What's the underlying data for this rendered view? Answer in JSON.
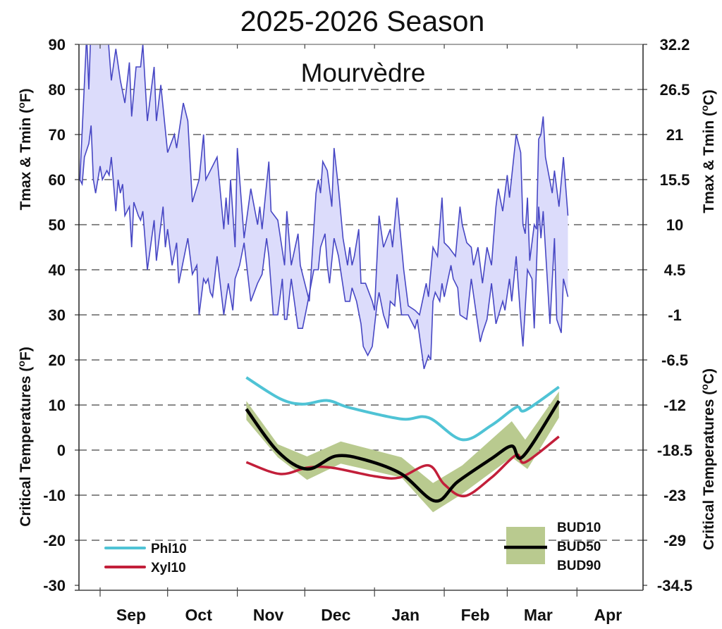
{
  "chart_data": {
    "type": "line",
    "title": "2025-2026 Season",
    "subtitle": "Mourvèdre",
    "ylabel_left_top": "Tmax & Tmin (",
    "ylabel_left_bottom": "Critical Temperatures (",
    "ylabel_right_top": "Tmax & Tmin (",
    "ylabel_right_bottom": "Critical Temperatures (",
    "unit_left": "F",
    "unit_right": "C",
    "degree_sup": "o",
    "close_paren": ")",
    "ylim_f": [
      -30,
      90
    ],
    "yticks_f": [
      "90",
      "80",
      "70",
      "60",
      "50",
      "40",
      "30",
      "20",
      "10",
      "0",
      "-10",
      "-20",
      "-30"
    ],
    "yticks_c": [
      "32.2",
      "26.5",
      "21",
      "15.5",
      "10",
      "4.5",
      "-1",
      "-6.5",
      "-12",
      "-18.5",
      "-23",
      "-29",
      "-34.5"
    ],
    "xlim": [
      "2025-08-22",
      "2026-05-01"
    ],
    "month_ticks": [
      "2025-09-01",
      "2025-10-01",
      "2025-11-01",
      "2025-12-01",
      "2026-01-01",
      "2026-02-01",
      "2026-03-01",
      "2026-04-01"
    ],
    "month_labels": [
      "Sep",
      "Oct",
      "Nov",
      "Dec",
      "Jan",
      "Feb",
      "Mar",
      "Apr"
    ],
    "grid": "horizontal dashed",
    "colors": {
      "temp_line": "#4747c4",
      "temp_fill": "#dcdcfb",
      "phl10": "#4fc3d5",
      "xyl10": "#c21f3a",
      "bud_band": "#b9ca8f",
      "bud50": "#000000"
    },
    "legend": {
      "left": [
        {
          "name": "Phl10",
          "key": "phl10"
        },
        {
          "name": "Xyl10",
          "key": "xyl10"
        }
      ],
      "right": [
        "BUD10",
        "BUD50",
        "BUD90"
      ],
      "placement": "bottom-left and bottom-right"
    },
    "series": {
      "tmax": [
        [
          "2025-08-23",
          60
        ],
        [
          "2025-08-26",
          92
        ],
        [
          "2025-08-27",
          80
        ],
        [
          "2025-08-28",
          95
        ],
        [
          "2025-09-04",
          95
        ],
        [
          "2025-09-06",
          82
        ],
        [
          "2025-09-08",
          89
        ],
        [
          "2025-09-10",
          82
        ],
        [
          "2025-09-12",
          77
        ],
        [
          "2025-09-14",
          86
        ],
        [
          "2025-09-15",
          74
        ],
        [
          "2025-09-17",
          85
        ],
        [
          "2025-09-19",
          85
        ],
        [
          "2025-09-20",
          90
        ],
        [
          "2025-09-22",
          73
        ],
        [
          "2025-09-25",
          85
        ],
        [
          "2025-09-26",
          73
        ],
        [
          "2025-09-28",
          81
        ],
        [
          "2025-10-01",
          66
        ],
        [
          "2025-10-04",
          70
        ],
        [
          "2025-10-05",
          67
        ],
        [
          "2025-10-08",
          77
        ],
        [
          "2025-10-10",
          73
        ],
        [
          "2025-10-12",
          55
        ],
        [
          "2025-10-15",
          60
        ],
        [
          "2025-10-17",
          70
        ],
        [
          "2025-10-18",
          60
        ],
        [
          "2025-10-20",
          62
        ],
        [
          "2025-10-23",
          65
        ],
        [
          "2025-10-26",
          49
        ],
        [
          "2025-10-27",
          56
        ],
        [
          "2025-10-28",
          50
        ],
        [
          "2025-10-29",
          60
        ],
        [
          "2025-10-31",
          45
        ],
        [
          "2025-11-01",
          67
        ],
        [
          "2025-11-04",
          47
        ],
        [
          "2025-11-07",
          58
        ],
        [
          "2025-11-10",
          50
        ],
        [
          "2025-11-11",
          54
        ],
        [
          "2025-11-12",
          49
        ],
        [
          "2025-11-15",
          64
        ],
        [
          "2025-11-16",
          53
        ],
        [
          "2025-11-19",
          51
        ],
        [
          "2025-11-22",
          41
        ],
        [
          "2025-11-23",
          53
        ],
        [
          "2025-11-25",
          41
        ],
        [
          "2025-11-28",
          48
        ],
        [
          "2025-11-29",
          41
        ],
        [
          "2025-12-01",
          37
        ],
        [
          "2025-12-03",
          33
        ],
        [
          "2025-12-06",
          57
        ],
        [
          "2025-12-07",
          60
        ],
        [
          "2025-12-08",
          57
        ],
        [
          "2025-12-09",
          64
        ],
        [
          "2025-12-11",
          62
        ],
        [
          "2025-12-13",
          54
        ],
        [
          "2025-12-14",
          67
        ],
        [
          "2025-12-16",
          58
        ],
        [
          "2025-12-18",
          47
        ],
        [
          "2025-12-20",
          41
        ],
        [
          "2025-12-21",
          45
        ],
        [
          "2025-12-22",
          41
        ],
        [
          "2025-12-23",
          43
        ],
        [
          "2025-12-25",
          49
        ],
        [
          "2025-12-26",
          37
        ],
        [
          "2025-12-28",
          37
        ],
        [
          "2025-12-31",
          33
        ],
        [
          "2026-01-01",
          31
        ],
        [
          "2026-01-03",
          52
        ],
        [
          "2026-01-05",
          45
        ],
        [
          "2026-01-08",
          49
        ],
        [
          "2026-01-09",
          45
        ],
        [
          "2026-01-11",
          56
        ],
        [
          "2026-01-14",
          40
        ],
        [
          "2026-01-16",
          32
        ],
        [
          "2026-01-19",
          31
        ],
        [
          "2026-01-21",
          30
        ],
        [
          "2026-01-24",
          37
        ],
        [
          "2026-01-25",
          34
        ],
        [
          "2026-01-27",
          45
        ],
        [
          "2026-01-29",
          43
        ],
        [
          "2026-01-31",
          56
        ],
        [
          "2026-02-01",
          46
        ],
        [
          "2026-02-03",
          45
        ],
        [
          "2026-02-06",
          43
        ],
        [
          "2026-02-08",
          54
        ],
        [
          "2026-02-09",
          50
        ],
        [
          "2026-02-11",
          46
        ],
        [
          "2026-02-13",
          45
        ],
        [
          "2026-02-14",
          41
        ],
        [
          "2026-02-16",
          45
        ],
        [
          "2026-02-18",
          37
        ],
        [
          "2026-02-20",
          45
        ],
        [
          "2026-02-22",
          41
        ],
        [
          "2026-02-24",
          54
        ],
        [
          "2026-02-25",
          58
        ],
        [
          "2026-02-27",
          53
        ],
        [
          "2026-03-01",
          61
        ],
        [
          "2026-03-02",
          56
        ],
        [
          "2026-03-05",
          70
        ],
        [
          "2026-03-07",
          66
        ],
        [
          "2026-03-08",
          50
        ],
        [
          "2026-03-09",
          48
        ],
        [
          "2026-03-10",
          56
        ],
        [
          "2026-03-11",
          42
        ],
        [
          "2026-03-13",
          50
        ],
        [
          "2026-03-14",
          49
        ],
        [
          "2026-03-15",
          69
        ],
        [
          "2026-03-16",
          70
        ],
        [
          "2026-03-17",
          74
        ],
        [
          "2026-03-18",
          65
        ],
        [
          "2026-03-21",
          57
        ],
        [
          "2026-03-22",
          62
        ],
        [
          "2026-03-24",
          54
        ],
        [
          "2026-03-26",
          65
        ],
        [
          "2026-03-28",
          52
        ]
      ],
      "tmin": [
        [
          "2025-08-23",
          60
        ],
        [
          "2025-08-24",
          59
        ],
        [
          "2025-08-25",
          65
        ],
        [
          "2025-08-27",
          68
        ],
        [
          "2025-08-28",
          72
        ],
        [
          "2025-08-29",
          60
        ],
        [
          "2025-08-30",
          57
        ],
        [
          "2025-09-01",
          63
        ],
        [
          "2025-09-02",
          60
        ],
        [
          "2025-09-04",
          62
        ],
        [
          "2025-09-05",
          61
        ],
        [
          "2025-09-06",
          65
        ],
        [
          "2025-09-08",
          53
        ],
        [
          "2025-09-09",
          60
        ],
        [
          "2025-09-10",
          57
        ],
        [
          "2025-09-11",
          59
        ],
        [
          "2025-09-12",
          52
        ],
        [
          "2025-09-14",
          54
        ],
        [
          "2025-09-15",
          45
        ],
        [
          "2025-09-16",
          55
        ],
        [
          "2025-09-18",
          52
        ],
        [
          "2025-09-19",
          51
        ],
        [
          "2025-09-20",
          53
        ],
        [
          "2025-09-22",
          40
        ],
        [
          "2025-09-25",
          51
        ],
        [
          "2025-09-26",
          42
        ],
        [
          "2025-09-29",
          54
        ],
        [
          "2025-09-30",
          45
        ],
        [
          "2025-10-01",
          49
        ],
        [
          "2025-10-03",
          41
        ],
        [
          "2025-10-05",
          46
        ],
        [
          "2025-10-06",
          37
        ],
        [
          "2025-10-10",
          47
        ],
        [
          "2025-10-12",
          39
        ],
        [
          "2025-10-14",
          41
        ],
        [
          "2025-10-15",
          30
        ],
        [
          "2025-10-17",
          38
        ],
        [
          "2025-10-18",
          37
        ],
        [
          "2025-10-19",
          38
        ],
        [
          "2025-10-20",
          35
        ],
        [
          "2025-10-21",
          34
        ],
        [
          "2025-10-23",
          43
        ],
        [
          "2025-10-26",
          30
        ],
        [
          "2025-10-28",
          37
        ],
        [
          "2025-10-30",
          31
        ],
        [
          "2025-10-31",
          38
        ],
        [
          "2025-11-02",
          41
        ],
        [
          "2025-11-04",
          46
        ],
        [
          "2025-11-07",
          33
        ],
        [
          "2025-11-10",
          37
        ],
        [
          "2025-11-12",
          39
        ],
        [
          "2025-11-14",
          47
        ],
        [
          "2025-11-15",
          43
        ],
        [
          "2025-11-17",
          30
        ],
        [
          "2025-11-19",
          30
        ],
        [
          "2025-11-21",
          38
        ],
        [
          "2025-11-22",
          29
        ],
        [
          "2025-11-23",
          29
        ],
        [
          "2025-11-25",
          38
        ],
        [
          "2025-11-28",
          27
        ],
        [
          "2025-11-30",
          27
        ],
        [
          "2025-12-02",
          32
        ],
        [
          "2025-12-05",
          40
        ],
        [
          "2025-12-07",
          40
        ],
        [
          "2025-12-08",
          45
        ],
        [
          "2025-12-10",
          48
        ],
        [
          "2025-12-11",
          41
        ],
        [
          "2025-12-12",
          37
        ],
        [
          "2025-12-14",
          47
        ],
        [
          "2025-12-16",
          43
        ],
        [
          "2025-12-19",
          33
        ],
        [
          "2025-12-21",
          33
        ],
        [
          "2025-12-22",
          36
        ],
        [
          "2025-12-24",
          33
        ],
        [
          "2025-12-26",
          28
        ],
        [
          "2025-12-27",
          23
        ],
        [
          "2025-12-29",
          21
        ],
        [
          "2025-12-31",
          23
        ],
        [
          "2026-01-02",
          32
        ],
        [
          "2026-01-03",
          35
        ],
        [
          "2026-01-05",
          30
        ],
        [
          "2026-01-07",
          27
        ],
        [
          "2026-01-08",
          33
        ],
        [
          "2026-01-10",
          32
        ],
        [
          "2026-01-11",
          39
        ],
        [
          "2026-01-13",
          30
        ],
        [
          "2026-01-16",
          30
        ],
        [
          "2026-01-19",
          27
        ],
        [
          "2026-01-20",
          29
        ],
        [
          "2026-01-23",
          18
        ],
        [
          "2026-01-25",
          21
        ],
        [
          "2026-01-26",
          20
        ],
        [
          "2026-01-27",
          33
        ],
        [
          "2026-01-28",
          35
        ],
        [
          "2026-01-30",
          33
        ],
        [
          "2026-01-31",
          37
        ],
        [
          "2026-02-01",
          34
        ],
        [
          "2026-02-04",
          41
        ],
        [
          "2026-02-05",
          38
        ],
        [
          "2026-02-07",
          36
        ],
        [
          "2026-02-08",
          30
        ],
        [
          "2026-02-11",
          29
        ],
        [
          "2026-02-13",
          38
        ],
        [
          "2026-02-17",
          24
        ],
        [
          "2026-02-18",
          26
        ],
        [
          "2026-02-20",
          29
        ],
        [
          "2026-02-22",
          37
        ],
        [
          "2026-02-24",
          28
        ],
        [
          "2026-02-27",
          33
        ],
        [
          "2026-02-28",
          31
        ],
        [
          "2026-03-02",
          38
        ],
        [
          "2026-03-03",
          33
        ],
        [
          "2026-03-05",
          43
        ],
        [
          "2026-03-07",
          29
        ],
        [
          "2026-03-08",
          23
        ],
        [
          "2026-03-10",
          40
        ],
        [
          "2026-03-12",
          38
        ],
        [
          "2026-03-13",
          27
        ],
        [
          "2026-03-15",
          54
        ],
        [
          "2026-03-16",
          47
        ],
        [
          "2026-03-17",
          53
        ],
        [
          "2026-03-20",
          28
        ],
        [
          "2026-03-22",
          47
        ],
        [
          "2026-03-23",
          29
        ],
        [
          "2026-03-25",
          26
        ],
        [
          "2026-03-26",
          38
        ],
        [
          "2026-03-28",
          34
        ]
      ],
      "phl10": [
        [
          "2025-11-05",
          16.1
        ],
        [
          "2025-11-20",
          11.4
        ],
        [
          "2025-11-30",
          10.2
        ],
        [
          "2025-12-11",
          11
        ],
        [
          "2025-12-21",
          9.4
        ],
        [
          "2026-01-13",
          6.9
        ],
        [
          "2026-01-25",
          7.2
        ],
        [
          "2026-02-09",
          2.3
        ],
        [
          "2026-02-22",
          5.5
        ],
        [
          "2026-03-05",
          9.5
        ],
        [
          "2026-03-09",
          8.8
        ],
        [
          "2026-03-24",
          14
        ]
      ],
      "xyl10": [
        [
          "2025-11-05",
          -2.7
        ],
        [
          "2025-11-20",
          -5.3
        ],
        [
          "2025-12-02",
          -3.9
        ],
        [
          "2025-12-13",
          -3.9
        ],
        [
          "2026-01-01",
          -5.8
        ],
        [
          "2026-01-12",
          -6.1
        ],
        [
          "2026-01-25",
          -3.4
        ],
        [
          "2026-02-01",
          -7.6
        ],
        [
          "2026-02-10",
          -10.2
        ],
        [
          "2026-02-22",
          -6.1
        ],
        [
          "2026-03-05",
          -1.1
        ],
        [
          "2026-03-09",
          -2.7
        ],
        [
          "2026-03-24",
          3
        ]
      ],
      "bud50": [
        [
          "2025-11-05",
          9.1
        ],
        [
          "2025-11-19",
          -0.3
        ],
        [
          "2025-12-02",
          -4.2
        ],
        [
          "2025-12-15",
          -1.3
        ],
        [
          "2025-12-28",
          -2.2
        ],
        [
          "2026-01-13",
          -5.3
        ],
        [
          "2026-01-28",
          -11.3
        ],
        [
          "2026-02-07",
          -7
        ],
        [
          "2026-02-22",
          -1.9
        ],
        [
          "2026-03-03",
          0.9
        ],
        [
          "2026-03-08",
          -1.4
        ],
        [
          "2026-03-24",
          10.9
        ]
      ],
      "bud10": [
        [
          "2025-11-05",
          10.9
        ],
        [
          "2025-11-19",
          1.3
        ],
        [
          "2025-12-02",
          -1.4
        ],
        [
          "2025-12-17",
          1.9
        ],
        [
          "2026-01-13",
          -1.6
        ],
        [
          "2026-01-27",
          -7.3
        ],
        [
          "2026-02-09",
          -3.4
        ],
        [
          "2026-03-03",
          6.4
        ],
        [
          "2026-03-09",
          2.3
        ],
        [
          "2026-03-24",
          13
        ]
      ],
      "bud90": [
        [
          "2025-11-05",
          6.7
        ],
        [
          "2025-11-19",
          -1.6
        ],
        [
          "2025-12-02",
          -6.6
        ],
        [
          "2025-12-17",
          -3
        ],
        [
          "2026-01-13",
          -6.1
        ],
        [
          "2026-01-27",
          -13.8
        ],
        [
          "2026-02-09",
          -9.7
        ],
        [
          "2026-03-03",
          -1.6
        ],
        [
          "2026-03-10",
          -4.2
        ],
        [
          "2026-03-24",
          7.2
        ]
      ]
    }
  }
}
